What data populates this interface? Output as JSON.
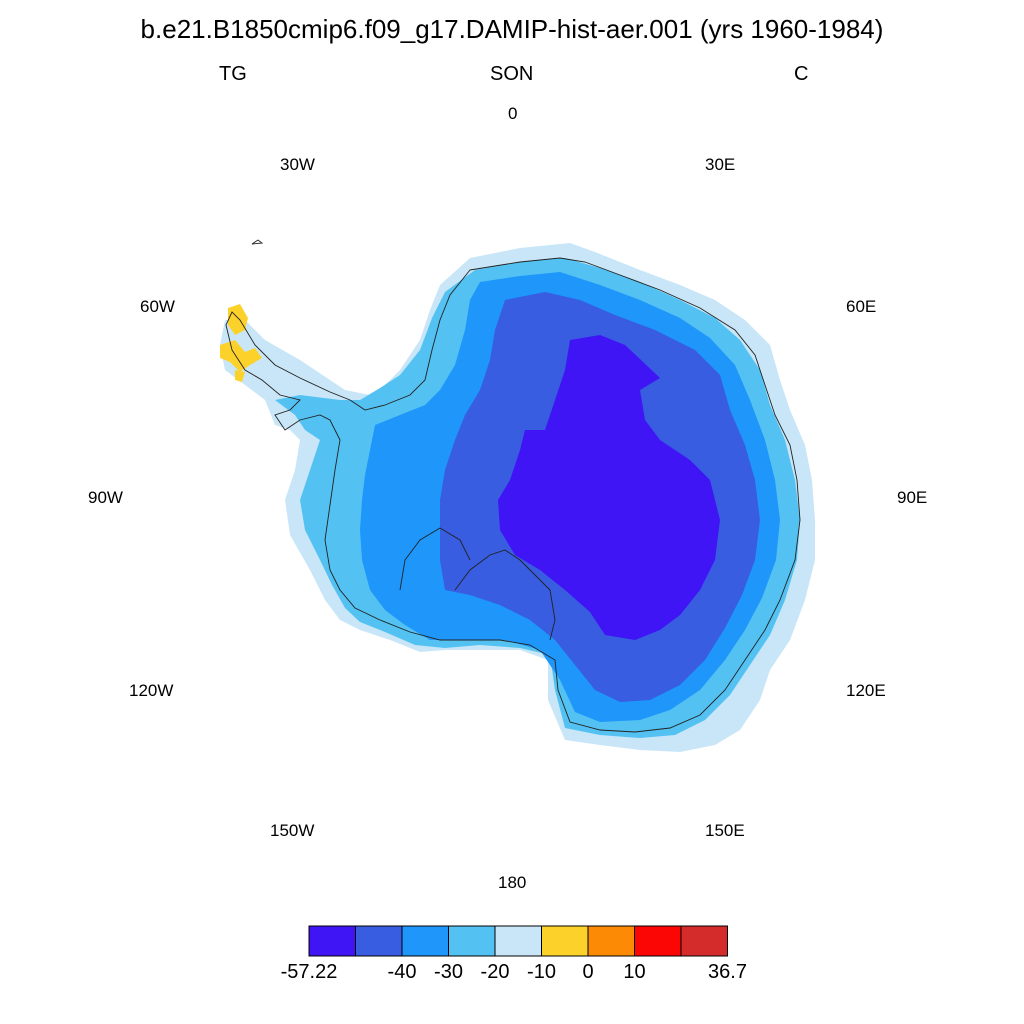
{
  "title": "b.e21.B1850cmip6.f09_g17.DAMIP-hist-aer.001 (yrs 1960-1984)",
  "subtitle_left": "TG",
  "subtitle_center": "SON",
  "subtitle_right": "C",
  "longitude_labels": {
    "lon_0": "0",
    "lon_30e": "30E",
    "lon_60e": "60E",
    "lon_90e": "90E",
    "lon_120e": "120E",
    "lon_150e": "150E",
    "lon_180": "180",
    "lon_150w": "150W",
    "lon_120w": "120W",
    "lon_90w": "90W",
    "lon_60w": "60W",
    "lon_30w": "30W"
  },
  "colorbar": {
    "colors": [
      "#3f14f5",
      "#385de0",
      "#1e96fa",
      "#53c2f2",
      "#c8e6f7",
      "#fcd22a",
      "#fc8a05",
      "#fc0505",
      "#d42b2b"
    ],
    "labels": [
      "-57.22",
      "-40",
      "-30",
      "-20",
      "-10",
      "0",
      "10",
      "36.7"
    ]
  },
  "map_regions": {
    "level_neg57_to_neg40": "#3f14f5",
    "level_neg40_to_neg30": "#385de0",
    "level_neg30_to_neg20": "#1e96fa",
    "level_neg20_to_neg10": "#53c2f2",
    "level_neg10_to_0": "#c8e6f7",
    "level_0_to_10": "#fcd22a"
  }
}
